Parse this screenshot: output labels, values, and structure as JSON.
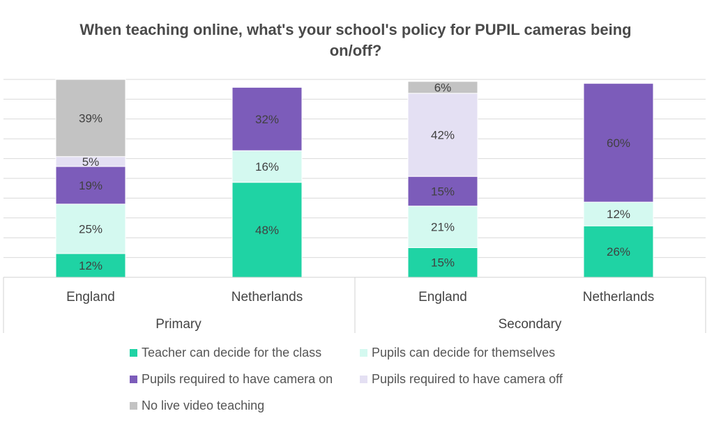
{
  "chart_data": {
    "type": "bar",
    "stacked": true,
    "title": "When teaching online, what's your school's policy for PUPIL cameras being on/off?",
    "groups": [
      {
        "label": "Primary",
        "categories": [
          "England",
          "Netherlands"
        ]
      },
      {
        "label": "Secondary",
        "categories": [
          "England",
          "Netherlands"
        ]
      }
    ],
    "categories": [
      "England",
      "Netherlands",
      "England",
      "Netherlands"
    ],
    "series": [
      {
        "name": "Teacher can decide for the class",
        "color": "#1fd3a4",
        "values": [
          12,
          48,
          15,
          26
        ]
      },
      {
        "name": "Pupils can decide for themselves",
        "color": "#d4f9f0",
        "values": [
          25,
          16,
          21,
          12
        ]
      },
      {
        "name": "Pupils required to have camera on",
        "color": "#7c5cba",
        "values": [
          19,
          32,
          15,
          60
        ]
      },
      {
        "name": "Pupils required to have camera off",
        "color": "#e4e0f3",
        "values": [
          5,
          null,
          42,
          null
        ]
      },
      {
        "name": "No live video teaching",
        "color": "#c3c3c3",
        "values": [
          39,
          null,
          6,
          null
        ]
      }
    ],
    "labels": [
      [
        "12%",
        "48%",
        "15%",
        "26%"
      ],
      [
        "25%",
        "16%",
        "21%",
        "12%"
      ],
      [
        "19%",
        "32%",
        "15%",
        "60%"
      ],
      [
        "5%",
        "",
        "42%",
        ""
      ],
      [
        "39%",
        "",
        "6%",
        ""
      ]
    ],
    "ylim": [
      0,
      100
    ],
    "grid": true,
    "legend_position": "bottom"
  }
}
